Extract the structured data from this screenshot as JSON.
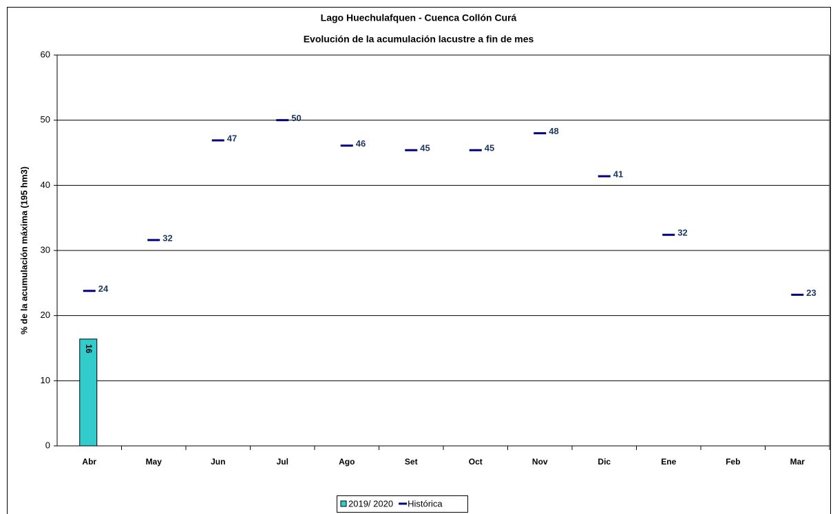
{
  "chart_data": {
    "type": "bar",
    "title": "Lago Huechulafquen - Cuenca Collón Curá",
    "subtitle": "Evolución de la acumulación lacustre a fin de mes",
    "y_label": "% de la acumulación máxima (195 hm3)",
    "categories": [
      "Abr",
      "May",
      "Jun",
      "Jul",
      "Ago",
      "Set",
      "Oct",
      "Nov",
      "Dic",
      "Ene",
      "Feb",
      "Mar"
    ],
    "series": [
      {
        "name": "2019/ 2020",
        "type": "bar",
        "color": "#33cccc",
        "values": [
          16.4,
          null,
          null,
          null,
          null,
          null,
          null,
          null,
          null,
          null,
          null,
          null
        ],
        "value_labels": [
          "16",
          null,
          null,
          null,
          null,
          null,
          null,
          null,
          null,
          null,
          null,
          null
        ]
      },
      {
        "name": "Histórica",
        "type": "marker",
        "color": "#000080",
        "values": [
          23.8,
          31.6,
          46.9,
          50.0,
          46.1,
          45.4,
          45.4,
          48.0,
          41.4,
          32.4,
          null,
          23.2
        ],
        "value_labels": [
          "24",
          "32",
          "47",
          "50",
          "46",
          "45",
          "45",
          "48",
          "41",
          "32",
          null,
          "23"
        ]
      }
    ],
    "ylim": [
      0,
      60
    ],
    "yticks": [
      0,
      10,
      20,
      30,
      40,
      50,
      60
    ],
    "grid": true
  }
}
